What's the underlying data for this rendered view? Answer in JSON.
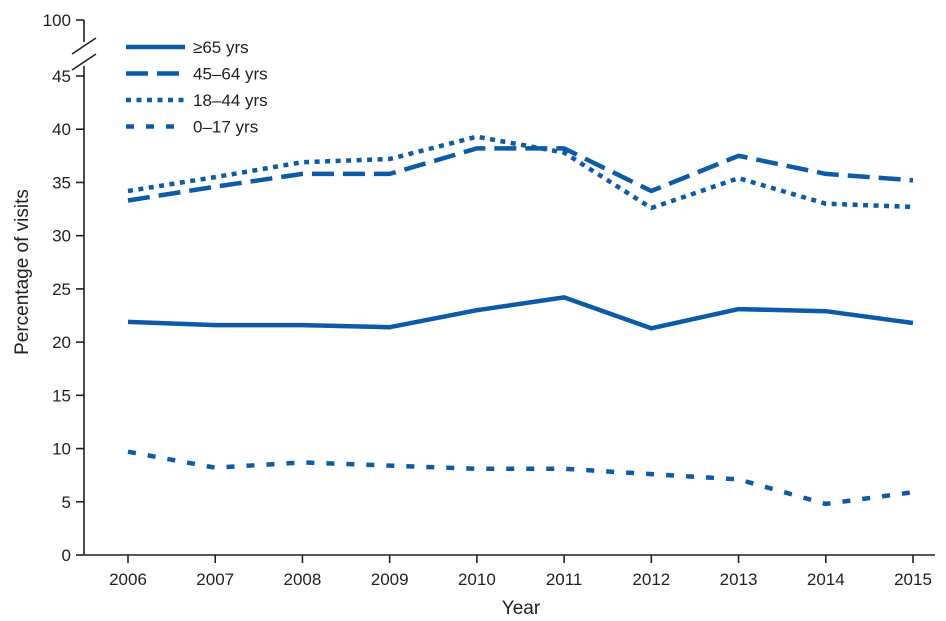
{
  "chart_data": {
    "type": "line",
    "title": "",
    "xlabel": "Year",
    "ylabel": "Percentage of visits",
    "x": [
      2006,
      2007,
      2008,
      2009,
      2010,
      2011,
      2012,
      2013,
      2014,
      2015
    ],
    "y_ticks": [
      0,
      5,
      10,
      15,
      20,
      25,
      30,
      35,
      40,
      45
    ],
    "y_break_label": "100",
    "ylim": [
      0,
      45
    ],
    "axis_break": true,
    "grid": false,
    "legend_position": "top-left",
    "color": "#0b5ba8",
    "series": [
      {
        "name": "≥65 yrs",
        "style": "solid",
        "values": [
          21.9,
          21.6,
          21.6,
          21.4,
          23.0,
          24.2,
          21.3,
          23.1,
          22.9,
          21.8
        ]
      },
      {
        "name": "45–64 yrs",
        "style": "dashed",
        "values": [
          33.3,
          34.6,
          35.8,
          35.8,
          38.2,
          38.2,
          34.2,
          37.5,
          35.8,
          35.2
        ]
      },
      {
        "name": "18–44 yrs",
        "style": "dotted",
        "values": [
          34.2,
          35.5,
          36.9,
          37.2,
          39.3,
          37.8,
          32.6,
          35.4,
          33.0,
          32.7
        ]
      },
      {
        "name": "0–17 yrs",
        "style": "dashdot",
        "values": [
          9.7,
          8.2,
          8.7,
          8.4,
          8.1,
          8.1,
          7.6,
          7.1,
          4.8,
          5.9
        ]
      }
    ]
  }
}
